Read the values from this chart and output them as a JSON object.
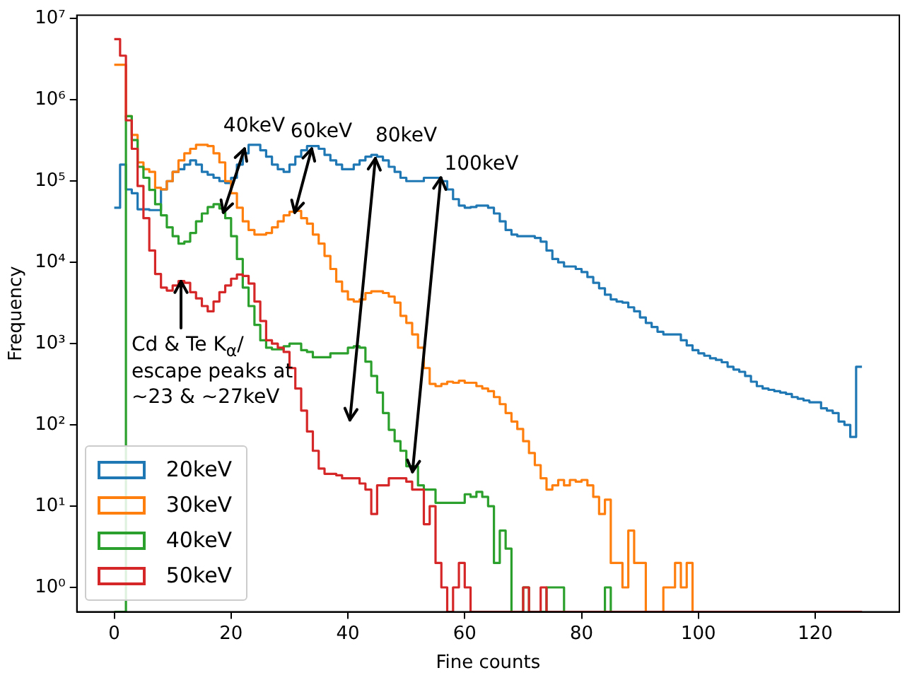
{
  "chart_data": {
    "type": "histogram",
    "xlabel": "Fine counts",
    "ylabel": "Frequency",
    "log": "y",
    "grid": false,
    "legend": "bottom left",
    "xlim": [
      -6.4,
      134.4
    ],
    "xticks": [
      0,
      20,
      40,
      60,
      80,
      100,
      120
    ],
    "ylim": [
      0.5,
      11000000
    ],
    "yticks": [
      {
        "value": 1,
        "label": "10⁰"
      },
      {
        "value": 10,
        "label": "10¹"
      },
      {
        "value": 100,
        "label": "10²"
      },
      {
        "value": 1000,
        "label": "10³"
      },
      {
        "value": 10000,
        "label": "10⁴"
      },
      {
        "value": 100000,
        "label": "10⁵"
      },
      {
        "value": 1000000,
        "label": "10⁶"
      },
      {
        "value": 10000000,
        "label": "10⁷"
      }
    ],
    "bins": [
      0,
      1,
      2,
      3,
      4,
      5,
      6,
      7,
      8,
      9,
      10,
      11,
      12,
      13,
      14,
      15,
      16,
      17,
      18,
      19,
      20,
      21,
      22,
      23,
      24,
      25,
      26,
      27,
      28,
      29,
      30,
      31,
      32,
      33,
      34,
      35,
      36,
      37,
      38,
      39,
      40,
      41,
      42,
      43,
      44,
      45,
      46,
      47,
      48,
      49,
      50,
      51,
      52,
      53,
      54,
      55,
      56,
      57,
      58,
      59,
      60,
      61,
      62,
      63,
      64,
      65,
      66,
      67,
      68,
      69,
      70,
      71,
      72,
      73,
      74,
      75,
      76,
      77,
      78,
      79,
      80,
      81,
      82,
      83,
      84,
      85,
      86,
      87,
      88,
      89,
      90,
      91,
      92,
      93,
      94,
      95,
      96,
      97,
      98,
      99,
      100,
      101,
      102,
      103,
      104,
      105,
      106,
      107,
      108,
      109,
      110,
      111,
      112,
      113,
      114,
      115,
      116,
      117,
      118,
      119,
      120,
      121,
      122,
      123,
      124,
      125,
      126,
      127,
      128
    ],
    "series": [
      {
        "name": "20keV",
        "color": "#1f77b4",
        "values": [
          47000,
          160000,
          79000,
          71000,
          45000,
          45000,
          44000,
          44000,
          79000,
          100000,
          130000,
          140000,
          160000,
          180000,
          160000,
          130000,
          120000,
          110000,
          100000,
          95000,
          110000,
          160000,
          220000,
          280000,
          280000,
          240000,
          200000,
          160000,
          140000,
          130000,
          160000,
          200000,
          240000,
          270000,
          270000,
          250000,
          210000,
          180000,
          160000,
          140000,
          140000,
          160000,
          180000,
          200000,
          210000,
          200000,
          180000,
          150000,
          130000,
          110000,
          100000,
          100000,
          100000,
          110000,
          110000,
          110000,
          100000,
          79000,
          60000,
          50000,
          47000,
          48000,
          50000,
          50000,
          47000,
          40000,
          32000,
          25000,
          22000,
          21000,
          21000,
          21000,
          20000,
          18000,
          14000,
          11000,
          10000,
          8900,
          8900,
          8300,
          7600,
          6600,
          5600,
          4800,
          4000,
          3500,
          3300,
          3200,
          2800,
          2500,
          2100,
          1800,
          1600,
          1400,
          1300,
          1300,
          1300,
          1100,
          950,
          830,
          760,
          710,
          660,
          630,
          590,
          520,
          480,
          450,
          400,
          340,
          300,
          280,
          270,
          260,
          250,
          240,
          220,
          210,
          200,
          190,
          190,
          160,
          150,
          140,
          110,
          100,
          71,
          520
        ]
      },
      {
        "name": "30keV",
        "color": "#ff7f0e",
        "values": [
          2700000,
          2700000,
          630000,
          370000,
          170000,
          140000,
          130000,
          83000,
          79000,
          100000,
          130000,
          180000,
          220000,
          250000,
          280000,
          280000,
          270000,
          220000,
          170000,
          100000,
          71000,
          47000,
          32000,
          25000,
          22000,
          22000,
          23000,
          27000,
          32000,
          38000,
          42000,
          43000,
          35000,
          30000,
          22000,
          17000,
          12000,
          8300,
          5800,
          4400,
          3500,
          3300,
          3500,
          4200,
          4400,
          4400,
          4200,
          3800,
          3200,
          2200,
          1800,
          1300,
          890,
          500,
          320,
          300,
          320,
          340,
          330,
          350,
          330,
          330,
          300,
          280,
          260,
          220,
          180,
          140,
          110,
          89,
          63,
          45,
          32,
          22,
          16,
          18,
          21,
          18,
          21,
          20,
          21,
          18,
          13,
          8,
          12,
          2,
          2,
          1,
          5,
          2,
          2,
          null,
          null,
          null,
          1,
          1,
          2,
          1,
          2,
          null,
          null,
          null,
          null,
          null,
          null,
          null,
          null,
          null,
          null,
          null,
          null,
          null,
          null,
          null,
          null,
          null,
          null,
          null,
          null,
          null,
          null,
          null,
          null,
          null,
          null,
          null,
          null,
          null
        ]
      },
      {
        "name": "40keV",
        "color": "#2ca02c",
        "values": [
          null,
          null,
          630000,
          320000,
          150000,
          110000,
          78000,
          52000,
          38000,
          27000,
          21000,
          17000,
          18000,
          23000,
          32000,
          40000,
          48000,
          52000,
          46000,
          35000,
          21000,
          11000,
          4900,
          2900,
          1700,
          1100,
          890,
          850,
          850,
          930,
          1000,
          1000,
          830,
          790,
          680,
          680,
          680,
          760,
          760,
          760,
          890,
          930,
          890,
          600,
          400,
          250,
          140,
          87,
          63,
          48,
          31,
          31,
          18,
          16,
          16,
          11,
          11,
          11,
          11,
          11,
          14,
          13,
          15,
          13,
          10,
          2,
          5,
          3,
          null,
          null,
          1,
          null,
          null,
          null,
          1,
          1,
          1,
          null,
          null,
          null,
          null,
          null,
          null,
          null,
          1,
          null,
          null,
          null,
          null,
          null,
          null,
          null,
          null,
          null,
          null,
          null,
          null,
          null,
          null,
          null,
          null,
          null,
          null,
          null,
          null,
          null,
          null,
          null,
          null,
          null,
          null,
          null,
          null,
          null,
          null,
          null,
          null,
          null,
          null,
          null,
          null,
          null,
          null,
          null,
          null,
          null,
          null,
          null
        ]
      },
      {
        "name": "50keV",
        "color": "#d62728",
        "values": [
          5600000,
          3500000,
          560000,
          250000,
          87000,
          35000,
          14000,
          7200,
          4900,
          4500,
          5200,
          5900,
          5600,
          4300,
          3600,
          2900,
          2500,
          3300,
          4300,
          5200,
          6300,
          7100,
          6800,
          5500,
          3300,
          1900,
          1100,
          1000,
          890,
          790,
          500,
          280,
          150,
          83,
          48,
          29,
          25,
          25,
          24,
          22,
          22,
          22,
          19,
          16,
          8,
          18,
          18,
          22,
          22,
          22,
          20,
          16,
          16,
          6,
          10,
          2,
          1,
          null,
          1,
          2,
          1,
          null,
          null,
          null,
          null,
          null,
          null,
          null,
          null,
          null,
          1,
          null,
          null,
          1,
          null,
          null,
          null,
          null,
          null,
          null,
          null,
          null,
          null,
          null,
          null,
          null,
          null,
          null,
          null,
          null,
          null,
          null,
          null,
          null,
          null,
          null,
          null,
          null,
          null,
          null,
          null,
          null,
          null,
          null,
          null,
          null,
          null,
          null,
          null,
          null,
          null,
          null,
          null,
          null,
          null,
          null,
          null,
          null,
          null,
          null,
          null,
          null,
          null,
          null,
          null,
          null,
          null,
          null
        ]
      }
    ],
    "annotations": [
      {
        "text": "40keV",
        "x": 22.3,
        "y": 250000
      },
      {
        "text": "60keV",
        "x": 33.8,
        "y": 250000
      },
      {
        "text": "80keV",
        "x": 44.7,
        "y": 190000
      },
      {
        "text": "100keV",
        "x": 55.9,
        "y": 110000
      },
      "Cd & Te K$_{α}$/ escape peaks at ~23 & ~27keV"
    ]
  }
}
